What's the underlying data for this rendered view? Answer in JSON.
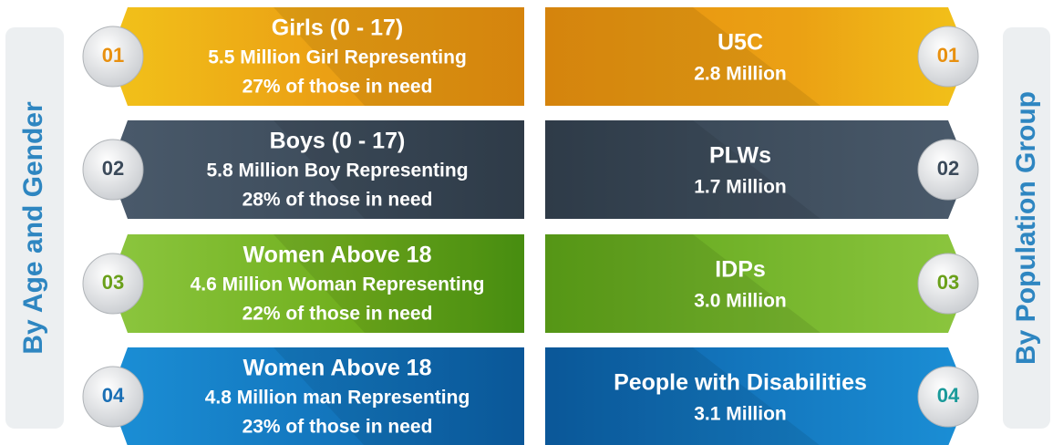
{
  "side_labels": {
    "left": "By Age and Gender",
    "right": "By Population Group"
  },
  "left_items": [
    {
      "number": "01",
      "title": "Girls (0 - 17)",
      "line1": "5.5  Million Girl Representing",
      "line2": "27% of those in need"
    },
    {
      "number": "02",
      "title": "Boys (0 - 17)",
      "line1": "5.8 Million Boy Representing",
      "line2": "28% of those in need"
    },
    {
      "number": "03",
      "title": "Women Above 18",
      "line1": "4.6 Million Woman Representing",
      "line2": "22% of those in need"
    },
    {
      "number": "04",
      "title": "Women Above 18",
      "line1": "4.8 Million man Representing",
      "line2": "23% of those in need"
    }
  ],
  "right_items": [
    {
      "number": "01",
      "title": "U5C",
      "value": "2.8 Million"
    },
    {
      "number": "02",
      "title": "PLWs",
      "value": "1.7 Million"
    },
    {
      "number": "03",
      "title": "IDPs",
      "value": "3.0 Million"
    },
    {
      "number": "04",
      "title": "People with Disabilities",
      "value": "3.1 Million"
    }
  ]
}
